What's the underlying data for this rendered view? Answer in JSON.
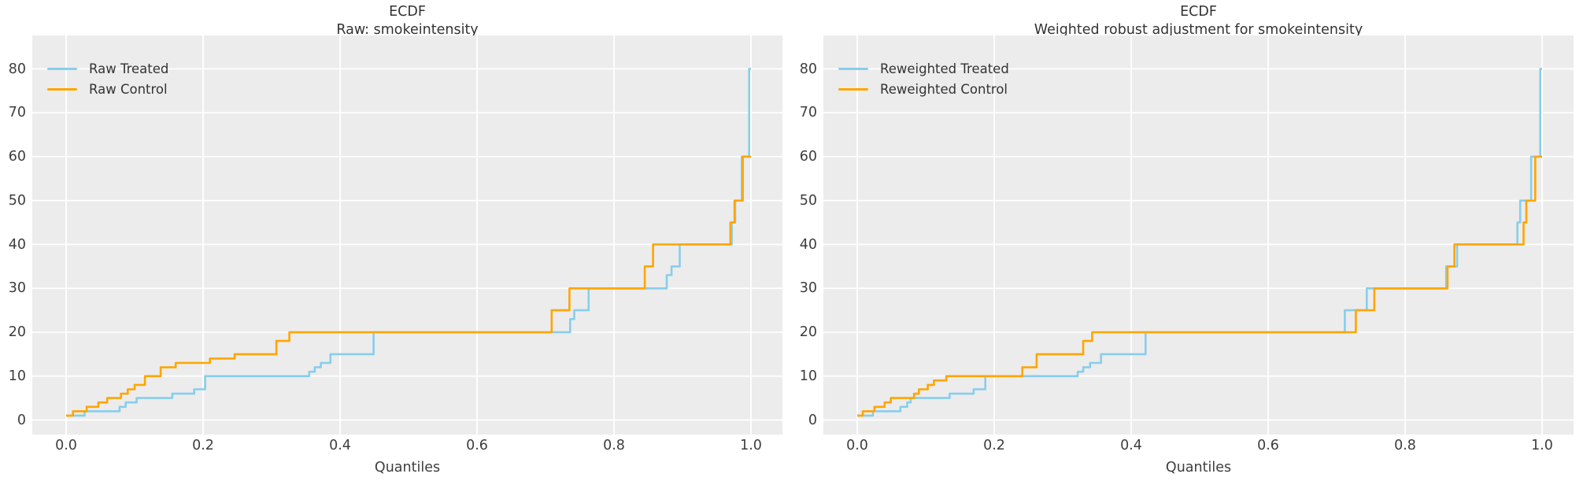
{
  "page": {
    "background": "#ffffff"
  },
  "style": {
    "axes_bg": "#ececec",
    "grid_color": "#ffffff",
    "tick_text_color": "#3d3d3d",
    "title_text_color": "#333333",
    "treated_color": "#87CEEB",
    "control_color": "#FFA500"
  },
  "chart_data": [
    {
      "type": "line",
      "step_mode": "post",
      "title": "ECDF",
      "subtitle": "Raw: smokeintensity",
      "xlabel": "Quantiles",
      "ylabel": "",
      "grid": true,
      "legend_position": "upper-left",
      "xlim": [
        -0.05,
        1.05
      ],
      "ylim": [
        -3.3,
        87.6
      ],
      "xticks": [
        0.0,
        0.2,
        0.4,
        0.6,
        0.8,
        1.0
      ],
      "xtick_labels": [
        "0.0",
        "0.2",
        "0.4",
        "0.6",
        "0.8",
        "1.0"
      ],
      "yticks": [
        0,
        10,
        20,
        30,
        40,
        50,
        60,
        70,
        80
      ],
      "ytick_labels": [
        "0",
        "10",
        "20",
        "30",
        "40",
        "50",
        "60",
        "70",
        "80"
      ],
      "series": [
        {
          "name": "Raw Treated",
          "color": "#87CEEB",
          "steps": [
            [
              0,
              1
            ],
            [
              0.027,
              2
            ],
            [
              0.078,
              3
            ],
            [
              0.087,
              4
            ],
            [
              0.103,
              5
            ],
            [
              0.155,
              6
            ],
            [
              0.187,
              7
            ],
            [
              0.203,
              10
            ],
            [
              0.355,
              11
            ],
            [
              0.363,
              12
            ],
            [
              0.372,
              13
            ],
            [
              0.386,
              15
            ],
            [
              0.449,
              20
            ],
            [
              0.736,
              23
            ],
            [
              0.742,
              25
            ],
            [
              0.763,
              30
            ],
            [
              0.877,
              33
            ],
            [
              0.884,
              35
            ],
            [
              0.896,
              40
            ],
            [
              0.972,
              45
            ],
            [
              0.977,
              50
            ],
            [
              0.9865,
              60
            ],
            [
              0.9974,
              80
            ]
          ]
        },
        {
          "name": "Raw Control",
          "color": "#FFA500",
          "steps": [
            [
              0,
              1
            ],
            [
              0.01,
              2
            ],
            [
              0.03,
              3
            ],
            [
              0.047,
              4
            ],
            [
              0.06,
              5
            ],
            [
              0.08,
              6
            ],
            [
              0.09,
              7
            ],
            [
              0.1,
              8
            ],
            [
              0.115,
              10
            ],
            [
              0.138,
              12
            ],
            [
              0.16,
              13
            ],
            [
              0.21,
              14
            ],
            [
              0.246,
              15
            ],
            [
              0.307,
              18
            ],
            [
              0.326,
              20
            ],
            [
              0.709,
              25
            ],
            [
              0.735,
              30
            ],
            [
              0.845,
              35
            ],
            [
              0.857,
              40
            ],
            [
              0.97,
              45
            ],
            [
              0.976,
              50
            ],
            [
              0.988,
              60
            ]
          ]
        }
      ]
    },
    {
      "type": "line",
      "step_mode": "post",
      "title": "ECDF",
      "subtitle": "Weighted robust adjustment for smokeintensity",
      "xlabel": "Quantiles",
      "ylabel": "",
      "grid": true,
      "legend_position": "upper-left",
      "xlim": [
        -0.05,
        1.05
      ],
      "ylim": [
        -3.3,
        87.6
      ],
      "xticks": [
        0.0,
        0.2,
        0.4,
        0.6,
        0.8,
        1.0
      ],
      "xtick_labels": [
        "0.0",
        "0.2",
        "0.4",
        "0.6",
        "0.8",
        "1.0"
      ],
      "yticks": [
        0,
        10,
        20,
        30,
        40,
        50,
        60,
        70,
        80
      ],
      "ytick_labels": [
        "0",
        "10",
        "20",
        "30",
        "40",
        "50",
        "60",
        "70",
        "80"
      ],
      "series": [
        {
          "name": "Reweighted Treated",
          "color": "#87CEEB",
          "steps": [
            [
              0,
              1
            ],
            [
              0.023,
              2
            ],
            [
              0.063,
              3
            ],
            [
              0.073,
              4
            ],
            [
              0.078,
              5
            ],
            [
              0.135,
              6
            ],
            [
              0.17,
              7
            ],
            [
              0.187,
              10
            ],
            [
              0.322,
              11
            ],
            [
              0.33,
              12
            ],
            [
              0.34,
              13
            ],
            [
              0.356,
              15
            ],
            [
              0.421,
              20
            ],
            [
              0.712,
              25
            ],
            [
              0.744,
              30
            ],
            [
              0.86,
              35
            ],
            [
              0.876,
              40
            ],
            [
              0.964,
              45
            ],
            [
              0.968,
              50
            ],
            [
              0.984,
              60
            ],
            [
              0.9974,
              80
            ]
          ]
        },
        {
          "name": "Reweighted Control",
          "color": "#FFA500",
          "steps": [
            [
              0,
              1
            ],
            [
              0.008,
              2
            ],
            [
              0.025,
              3
            ],
            [
              0.04,
              4
            ],
            [
              0.049,
              5
            ],
            [
              0.083,
              6
            ],
            [
              0.09,
              7
            ],
            [
              0.103,
              8
            ],
            [
              0.112,
              9
            ],
            [
              0.13,
              10
            ],
            [
              0.241,
              12
            ],
            [
              0.262,
              15
            ],
            [
              0.33,
              18
            ],
            [
              0.343,
              20
            ],
            [
              0.728,
              25
            ],
            [
              0.755,
              30
            ],
            [
              0.862,
              35
            ],
            [
              0.872,
              40
            ],
            [
              0.973,
              45
            ],
            [
              0.977,
              50
            ],
            [
              0.99,
              60
            ]
          ]
        }
      ]
    }
  ]
}
